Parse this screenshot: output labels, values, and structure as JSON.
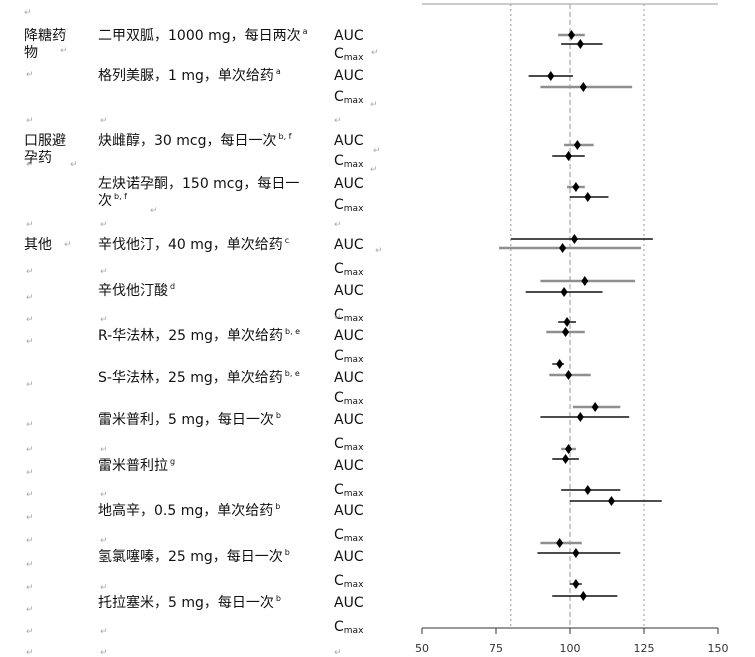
{
  "pilcrow": "↵",
  "groups": [
    {
      "label": "降糖药物"
    },
    {
      "label": "口服避孕药"
    },
    {
      "label": "其他"
    }
  ],
  "drugs": [
    {
      "name": "二甲双胍，1000 mg，每日两次",
      "sup": "a"
    },
    {
      "name": "格列美脲，1 mg，单次给药",
      "sup": "a"
    },
    {
      "name": "炔雌醇，30 mcg，每日一次",
      "sup": "b, f"
    },
    {
      "name": "左炔诺孕酮，150 mcg，每日一次",
      "sup": "b, f"
    },
    {
      "name": "辛伐他汀，40 mg，单次给药",
      "sup": "c"
    },
    {
      "name": "辛伐他汀酸",
      "sup": "d"
    },
    {
      "name": "R-华法林，25 mg，单次给药",
      "sup": "b, e"
    },
    {
      "name": "S-华法林，25 mg，单次给药",
      "sup": "b, e"
    },
    {
      "name": "雷米普利，5 mg，每日一次",
      "sup": "b"
    },
    {
      "name": "雷米普利拉",
      "sup": "g"
    },
    {
      "name": "地高辛，0.5 mg，单次给药",
      "sup": "b"
    },
    {
      "name": "氢氯噻嗪，25 mg，每日一次",
      "sup": "b"
    },
    {
      "name": "托拉塞米，5 mg，每日一次",
      "sup": "b"
    }
  ],
  "params": {
    "auc": "AUC",
    "cmax_base": "C",
    "cmax_sub": "max"
  },
  "chart_data": {
    "type": "scatter",
    "subtype": "forest-plot",
    "xlim": [
      50,
      150
    ],
    "xticks": [
      50,
      75,
      100,
      125,
      150
    ],
    "reference_lines": [
      80,
      100,
      125
    ],
    "series": [
      {
        "drug": "二甲双胍",
        "parameter": "AUC",
        "value": 100.5,
        "low": 96,
        "high": 105,
        "shade": "gray"
      },
      {
        "drug": "二甲双胍",
        "parameter": "Cmax",
        "value": 103.5,
        "low": 97,
        "high": 111,
        "shade": "black"
      },
      {
        "drug": "格列美脲",
        "parameter": "AUC",
        "value": 93.5,
        "low": 86,
        "high": 101,
        "shade": "black"
      },
      {
        "drug": "格列美脲",
        "parameter": "Cmax",
        "value": 104.5,
        "low": 90,
        "high": 121,
        "shade": "gray"
      },
      {
        "drug": "炔雌醇",
        "parameter": "AUC",
        "value": 102.5,
        "low": 98,
        "high": 108,
        "shade": "gray"
      },
      {
        "drug": "炔雌醇",
        "parameter": "Cmax",
        "value": 99.5,
        "low": 94,
        "high": 105,
        "shade": "black"
      },
      {
        "drug": "左炔诺孕酮",
        "parameter": "AUC",
        "value": 102,
        "low": 99,
        "high": 105,
        "shade": "gray"
      },
      {
        "drug": "左炔诺孕酮",
        "parameter": "Cmax",
        "value": 106,
        "low": 100,
        "high": 113,
        "shade": "black"
      },
      {
        "drug": "辛伐他汀",
        "parameter": "AUC",
        "value": 101.5,
        "low": 80,
        "high": 128,
        "shade": "black"
      },
      {
        "drug": "辛伐他汀",
        "parameter": "Cmax",
        "value": 97.5,
        "low": 76,
        "high": 124,
        "shade": "gray"
      },
      {
        "drug": "辛伐他汀酸",
        "parameter": "AUC",
        "value": 105,
        "low": 90,
        "high": 122,
        "shade": "gray"
      },
      {
        "drug": "辛伐他汀酸",
        "parameter": "Cmax",
        "value": 98,
        "low": 85,
        "high": 111,
        "shade": "black"
      },
      {
        "drug": "R-华法林",
        "parameter": "AUC",
        "value": 99,
        "low": 96,
        "high": 102,
        "shade": "black"
      },
      {
        "drug": "R-华法林",
        "parameter": "Cmax",
        "value": 98.5,
        "low": 92,
        "high": 105,
        "shade": "gray"
      },
      {
        "drug": "S-华法林",
        "parameter": "AUC",
        "value": 96.5,
        "low": 94,
        "high": 98,
        "shade": "black"
      },
      {
        "drug": "S-华法林",
        "parameter": "Cmax",
        "value": 99.5,
        "low": 93,
        "high": 107,
        "shade": "gray"
      },
      {
        "drug": "雷米普利",
        "parameter": "AUC",
        "value": 108.5,
        "low": 101,
        "high": 117,
        "shade": "gray"
      },
      {
        "drug": "雷米普利",
        "parameter": "Cmax",
        "value": 103.5,
        "low": 90,
        "high": 120,
        "shade": "black"
      },
      {
        "drug": "雷米普利拉",
        "parameter": "AUC",
        "value": 99.5,
        "low": 97,
        "high": 102,
        "shade": "gray"
      },
      {
        "drug": "雷米普利拉",
        "parameter": "Cmax",
        "value": 98.5,
        "low": 94,
        "high": 103,
        "shade": "black"
      },
      {
        "drug": "地高辛",
        "parameter": "AUC",
        "value": 106,
        "low": 97,
        "high": 117,
        "shade": "black"
      },
      {
        "drug": "地高辛",
        "parameter": "Cmax",
        "value": 114,
        "low": 100,
        "high": 131,
        "shade": "black"
      },
      {
        "drug": "氢氯噻嗪",
        "parameter": "AUC",
        "value": 96.5,
        "low": 90,
        "high": 104,
        "shade": "gray"
      },
      {
        "drug": "氢氯噻嗪",
        "parameter": "Cmax",
        "value": 102,
        "low": 89,
        "high": 117,
        "shade": "black"
      },
      {
        "drug": "托拉塞米",
        "parameter": "AUC",
        "value": 102,
        "low": 100,
        "high": 104,
        "shade": "black"
      },
      {
        "drug": "托拉塞米",
        "parameter": "Cmax",
        "value": 104.5,
        "low": 94,
        "high": 116,
        "shade": "black"
      }
    ]
  }
}
